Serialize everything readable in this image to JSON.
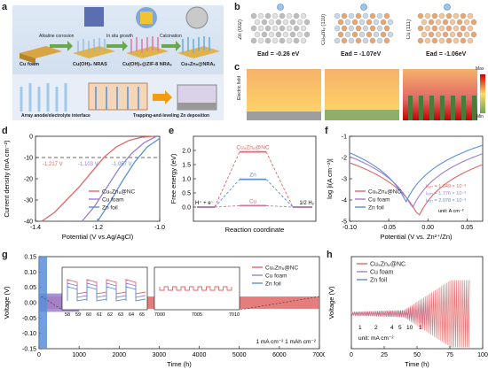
{
  "panel_letters": [
    "a",
    "b",
    "c",
    "d",
    "e",
    "f",
    "g",
    "h"
  ],
  "panel_a": {
    "steps": [
      "Alkaline corrosion",
      "In situ growth",
      "Calcination"
    ],
    "materials": [
      "Cu foam",
      "Cu(OH)₂ NRAS",
      "Cu(OH)₂@ZIF-8 NRAₛ",
      "Cu₅Zn₈@NRAₛ"
    ],
    "bottom_labels": [
      "Array anode/electrolyte interface",
      "Trapping-and-leveling Zn deposition"
    ]
  },
  "panel_b": {
    "facets": [
      "Zn (002)",
      "Cu₅Zn₈ (110)",
      "Cu (111)"
    ],
    "energies": [
      "Ead = -0.26 eV",
      "Ead = -1.07eV",
      "Ead = -1.06eV"
    ]
  },
  "panel_c": {
    "side_label": "Electric field",
    "scale_max": "Max",
    "scale_min": "Min"
  },
  "panel_d": {
    "chart_data": {
      "type": "line",
      "xlabel": "Potential (V vs.Ag/AgCl)",
      "ylabel": "Current density (mA cm⁻²)",
      "xlim": [
        -1.4,
        -1.0
      ],
      "ylim": [
        -40,
        0
      ],
      "xticks": [
        "-1.4",
        "-1.2",
        "-1.0"
      ],
      "yticks": [
        "0",
        "-10",
        "-20",
        "-30",
        "-40"
      ],
      "reference_line": -10,
      "annotations": [
        "-1.217 V",
        "-1.103 V",
        "-1.057 V"
      ],
      "series": [
        {
          "name": "Cu₅Zn₈@NC",
          "color": "#e06666",
          "x": [
            -1.38,
            -1.34,
            -1.3,
            -1.26,
            -1.22,
            -1.18,
            -1.14,
            -1.1,
            -1.06,
            -1.02
          ],
          "y": [
            -40,
            -36,
            -30,
            -24,
            -17,
            -10,
            -5,
            -2,
            -0.5,
            0
          ]
        },
        {
          "name": "Cu foam",
          "color": "#9b7fd0",
          "x": [
            -1.25,
            -1.21,
            -1.17,
            -1.13,
            -1.09,
            -1.05,
            -1.01
          ],
          "y": [
            -40,
            -33,
            -24,
            -15,
            -8,
            -3,
            0
          ]
        },
        {
          "name": "Zn foil",
          "color": "#5b8fd6",
          "x": [
            -1.2,
            -1.16,
            -1.12,
            -1.08,
            -1.04,
            -1.0
          ],
          "y": [
            -40,
            -31,
            -21,
            -12,
            -5,
            -1
          ]
        }
      ]
    }
  },
  "panel_e": {
    "chart_data": {
      "type": "line",
      "xlabel": "Reaction coordinate",
      "ylabel": "Free energy (eV)",
      "ylim": [
        -0.5,
        2.5
      ],
      "yticks": [
        "0.0",
        "0.5",
        "1.0",
        "1.5",
        "2.0"
      ],
      "state_labels": [
        "H⁺ + e⁻",
        "1/2 H₂"
      ],
      "series": [
        {
          "name": "Cu₅Zn₈@NC",
          "color": "#e06666",
          "y": [
            0,
            1.95,
            0
          ]
        },
        {
          "name": "Zn",
          "color": "#5b8fd6",
          "y": [
            0,
            0.98,
            0
          ]
        },
        {
          "name": "Cu",
          "color": "#c27ba0",
          "y": [
            0,
            0.05,
            0
          ]
        }
      ]
    }
  },
  "panel_f": {
    "chart_data": {
      "type": "line",
      "xlabel": "Potential (V vs. Zn²⁺/Zn)",
      "ylabel": "log |i(A cm⁻²)|",
      "xlim": [
        -0.1,
        0.07
      ],
      "ylim": [
        -5,
        -1
      ],
      "xticks": [
        "-0.10",
        "-0.05",
        "0.00",
        "0.05"
      ],
      "yticks": [
        "-1",
        "-2",
        "-3",
        "-4",
        "-5"
      ],
      "icorr": [
        "iₑₒᵣᵣ = 1.649 × 10⁻³",
        "iₑₒᵣᵣ = 1.776 × 10⁻³",
        "iₑₒᵣᵣ = 2.078 × 10⁻³"
      ],
      "unit_note": "unit: A cm⁻²",
      "series": [
        {
          "name": "Cu₅Zn₈@NC",
          "color": "#e06666",
          "ecorr": -0.012,
          "ilog": -4.8
        },
        {
          "name": "Cu foam",
          "color": "#9b7fd0",
          "ecorr": -0.02,
          "ilog": -4.4
        },
        {
          "name": "Zn foil",
          "color": "#5b8fd6",
          "ecorr": -0.028,
          "ilog": -4.1
        }
      ]
    }
  },
  "panel_g": {
    "chart_data": {
      "type": "line",
      "xlabel": "Time (h)",
      "ylabel": "Voltage (V)",
      "xlim": [
        0,
        7000
      ],
      "ylim": [
        -0.15,
        0.15
      ],
      "xticks": [
        "0",
        "1000",
        "2000",
        "3000",
        "4000",
        "5000",
        "6000",
        "7000"
      ],
      "yticks": [
        "-0.15",
        "-0.10",
        "-0.05",
        "0.00",
        "0.05",
        "0.10",
        "0.15"
      ],
      "condition": "1 mA cm⁻² 1 mAh cm⁻²",
      "inset1_xticks": [
        "58",
        "59",
        "60",
        "61",
        "62",
        "63",
        "64",
        "65"
      ],
      "inset2_xticks": [
        "7000",
        "7005",
        "7010"
      ],
      "series": [
        {
          "name": "Cu₅Zn₈@NC",
          "color": "#e06666",
          "x_end": 7000,
          "amplitude": 0.02
        },
        {
          "name": "Cu foam",
          "color": "#9b7fd0",
          "x_end": 1000,
          "amplitude": 0.03
        },
        {
          "name": "Zn foil",
          "color": "#5b8fd6",
          "x_end": 200,
          "amplitude": 0.15
        }
      ]
    }
  },
  "panel_h": {
    "chart_data": {
      "type": "line",
      "xlabel": "Time (h)",
      "ylabel": "Voltage (V)",
      "xlim": [
        0,
        100
      ],
      "xticks": [
        "0",
        "25",
        "50",
        "75",
        "100"
      ],
      "rate_labels": [
        "1",
        "2",
        "4",
        "5",
        "10",
        "1"
      ],
      "unit_note": "unit: mA cm⁻²",
      "series": [
        {
          "name": "Cu₅Zn₈@NC",
          "color": "#e06666",
          "x_end": 90
        },
        {
          "name": "Cu foam",
          "color": "#9b7fd0",
          "x_end": 60
        },
        {
          "name": "Zn foil",
          "color": "#5b8fd6",
          "x_end": 45
        }
      ]
    }
  }
}
